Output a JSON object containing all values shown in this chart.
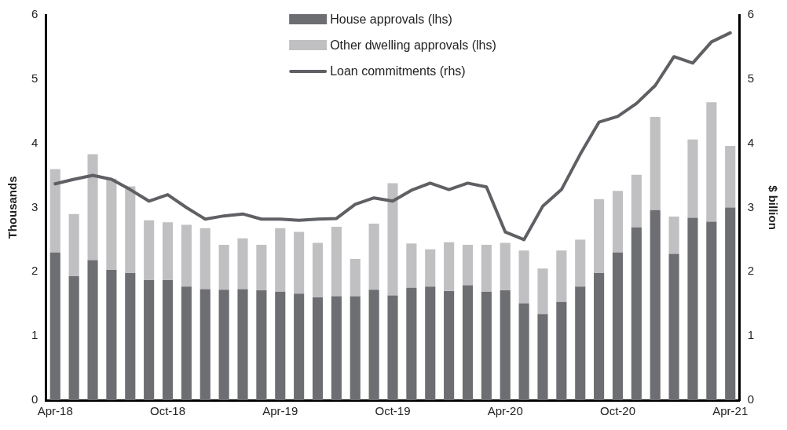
{
  "chart_data": {
    "type": "bar",
    "stacked": true,
    "ylabel": "Thousands",
    "y2label": "$ billion",
    "categories": [
      "Apr-18",
      null,
      null,
      null,
      null,
      null,
      "Oct-18",
      null,
      null,
      null,
      null,
      null,
      "Apr-19",
      null,
      null,
      null,
      null,
      null,
      "Oct-19",
      null,
      null,
      null,
      null,
      null,
      "Apr-20",
      null,
      null,
      null,
      null,
      null,
      "Oct-20",
      null,
      null,
      null,
      null,
      null,
      "Apr-21"
    ],
    "series": [
      {
        "name": "House approvals (lhs)",
        "color": "#6d6e72",
        "values": [
          2.3,
          1.93,
          2.18,
          2.03,
          1.98,
          1.87,
          1.87,
          1.77,
          1.73,
          1.72,
          1.73,
          1.71,
          1.69,
          1.66,
          1.6,
          1.62,
          1.62,
          1.72,
          1.63,
          1.75,
          1.77,
          1.7,
          1.79,
          1.69,
          1.71,
          1.51,
          1.34,
          1.53,
          1.77,
          1.98,
          2.3,
          2.69,
          2.96,
          2.28,
          2.84,
          2.78,
          3.0
        ]
      },
      {
        "name": "Other dwelling approvals (lhs)",
        "color": "#c0c0c2",
        "values": [
          1.3,
          0.97,
          1.65,
          1.42,
          1.35,
          0.93,
          0.9,
          0.96,
          0.95,
          0.7,
          0.79,
          0.71,
          0.99,
          0.96,
          0.85,
          1.08,
          0.58,
          1.03,
          1.75,
          0.69,
          0.58,
          0.76,
          0.63,
          0.73,
          0.74,
          0.82,
          0.71,
          0.8,
          0.73,
          1.15,
          0.96,
          0.82,
          1.45,
          0.58,
          1.22,
          1.86,
          0.96
        ]
      },
      {
        "name": "Loan commitments (rhs)",
        "type": "line",
        "axis": "y2",
        "color": "#5f6064",
        "values": [
          3.37,
          3.44,
          3.5,
          3.44,
          3.28,
          3.1,
          3.2,
          3.0,
          2.82,
          2.87,
          2.9,
          2.82,
          2.82,
          2.8,
          2.82,
          2.83,
          3.05,
          3.15,
          3.1,
          3.27,
          3.38,
          3.28,
          3.38,
          3.32,
          2.62,
          2.5,
          3.02,
          3.28,
          3.83,
          4.33,
          4.42,
          4.62,
          4.9,
          5.35,
          5.25,
          5.58,
          5.72
        ]
      }
    ],
    "ylim": [
      0,
      6
    ],
    "yticks": [
      0,
      1,
      2,
      3,
      4,
      5,
      6
    ],
    "y2lim": [
      0,
      6
    ],
    "y2ticks": [
      0,
      1,
      2,
      3,
      4,
      5,
      6
    ],
    "grid": false,
    "legend": "top",
    "marker": "none",
    "line_style": "solid"
  }
}
